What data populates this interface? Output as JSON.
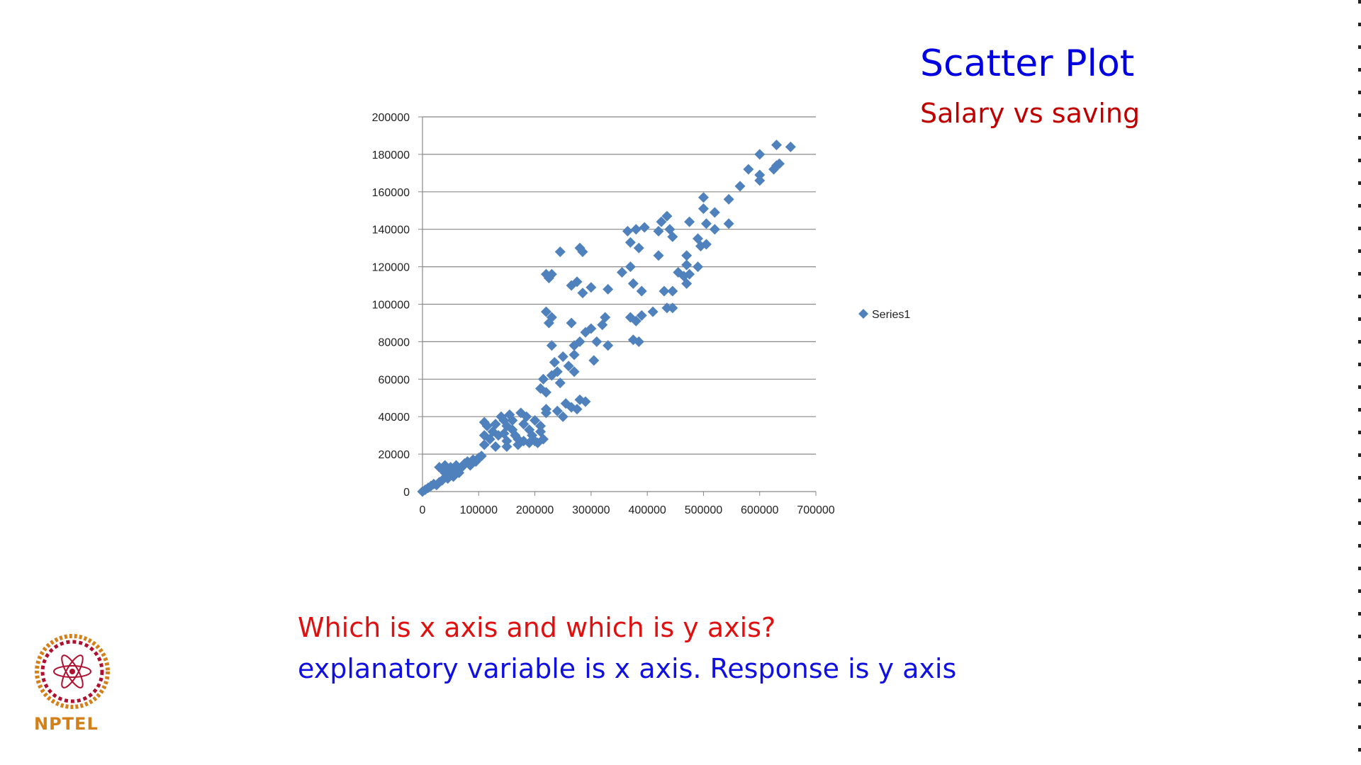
{
  "slide": {
    "title": "Scatter Plot",
    "subtitle": "Salary vs saving",
    "question": "Which is x axis and which is y axis?",
    "answer": "explanatory variable is x axis. Response is y axis",
    "logo_text": "NPTEL"
  },
  "colors": {
    "title": "#0000e0",
    "subtitle": "#c00000",
    "question": "#e01010",
    "answer": "#1010e0",
    "marker": "#4f81bd",
    "gridline": "#888888"
  },
  "chart_data": {
    "type": "scatter",
    "title": "",
    "xlabel": "",
    "ylabel": "",
    "xlim": [
      0,
      700000
    ],
    "ylim": [
      0,
      200000
    ],
    "x_ticks": [
      "0",
      "100000",
      "200000",
      "300000",
      "400000",
      "500000",
      "600000",
      "700000"
    ],
    "y_ticks": [
      "0",
      "20000",
      "40000",
      "60000",
      "80000",
      "100000",
      "120000",
      "140000",
      "160000",
      "180000",
      "200000"
    ],
    "grid": "horizontal",
    "legend_position": "right",
    "series": [
      {
        "name": "Series1",
        "marker": "diamond",
        "points": [
          [
            0,
            0
          ],
          [
            5000,
            1000
          ],
          [
            10000,
            2000
          ],
          [
            15000,
            3000
          ],
          [
            20000,
            4000
          ],
          [
            25000,
            3500
          ],
          [
            30000,
            5000
          ],
          [
            35000,
            6000
          ],
          [
            30000,
            13000
          ],
          [
            35000,
            12000
          ],
          [
            40000,
            10000
          ],
          [
            45000,
            11000
          ],
          [
            50000,
            9000
          ],
          [
            55000,
            12000
          ],
          [
            60000,
            11000
          ],
          [
            40000,
            14000
          ],
          [
            50000,
            13000
          ],
          [
            60000,
            14000
          ],
          [
            70000,
            13000
          ],
          [
            75000,
            15000
          ],
          [
            80000,
            16000
          ],
          [
            85000,
            14000
          ],
          [
            90000,
            17000
          ],
          [
            95000,
            16000
          ],
          [
            100000,
            18000
          ],
          [
            105000,
            19000
          ],
          [
            65000,
            10000
          ],
          [
            45000,
            7000
          ],
          [
            55000,
            8000
          ],
          [
            110000,
            25000
          ],
          [
            110000,
            30000
          ],
          [
            115000,
            35000
          ],
          [
            110000,
            37000
          ],
          [
            120000,
            28000
          ],
          [
            125000,
            32000
          ],
          [
            130000,
            36000
          ],
          [
            130000,
            24000
          ],
          [
            135000,
            30000
          ],
          [
            140000,
            40000
          ],
          [
            145000,
            38000
          ],
          [
            150000,
            35000
          ],
          [
            150000,
            27000
          ],
          [
            155000,
            41000
          ],
          [
            160000,
            33000
          ],
          [
            165000,
            30000
          ],
          [
            170000,
            28000
          ],
          [
            175000,
            42000
          ],
          [
            180000,
            36000
          ],
          [
            185000,
            40000
          ],
          [
            190000,
            33000
          ],
          [
            195000,
            30000
          ],
          [
            200000,
            38000
          ],
          [
            205000,
            26000
          ],
          [
            210000,
            32000
          ],
          [
            215000,
            28000
          ],
          [
            220000,
            44000
          ],
          [
            150000,
            24000
          ],
          [
            170000,
            25000
          ],
          [
            190000,
            26000
          ],
          [
            200000,
            27000
          ],
          [
            210000,
            35000
          ],
          [
            180000,
            27000
          ],
          [
            160000,
            38000
          ],
          [
            145000,
            31000
          ],
          [
            210000,
            55000
          ],
          [
            215000,
            60000
          ],
          [
            220000,
            53000
          ],
          [
            220000,
            42000
          ],
          [
            230000,
            62000
          ],
          [
            235000,
            69000
          ],
          [
            240000,
            64000
          ],
          [
            245000,
            58000
          ],
          [
            250000,
            72000
          ],
          [
            260000,
            67000
          ],
          [
            270000,
            64000
          ],
          [
            250000,
            40000
          ],
          [
            240000,
            43000
          ],
          [
            255000,
            47000
          ],
          [
            265000,
            45000
          ],
          [
            280000,
            49000
          ],
          [
            275000,
            44000
          ],
          [
            290000,
            48000
          ],
          [
            230000,
            78000
          ],
          [
            270000,
            78000
          ],
          [
            280000,
            80000
          ],
          [
            290000,
            85000
          ],
          [
            300000,
            87000
          ],
          [
            310000,
            80000
          ],
          [
            330000,
            78000
          ],
          [
            325000,
            93000
          ],
          [
            320000,
            89000
          ],
          [
            265000,
            90000
          ],
          [
            220000,
            96000
          ],
          [
            230000,
            93000
          ],
          [
            225000,
            90000
          ],
          [
            305000,
            70000
          ],
          [
            270000,
            73000
          ],
          [
            220000,
            116000
          ],
          [
            225000,
            114000
          ],
          [
            230000,
            116000
          ],
          [
            245000,
            128000
          ],
          [
            280000,
            130000
          ],
          [
            285000,
            128000
          ],
          [
            265000,
            110000
          ],
          [
            275000,
            112000
          ],
          [
            285000,
            106000
          ],
          [
            300000,
            109000
          ],
          [
            330000,
            108000
          ],
          [
            355000,
            117000
          ],
          [
            370000,
            120000
          ],
          [
            365000,
            139000
          ],
          [
            370000,
            133000
          ],
          [
            380000,
            140000
          ],
          [
            385000,
            130000
          ],
          [
            395000,
            141000
          ],
          [
            375000,
            111000
          ],
          [
            390000,
            107000
          ],
          [
            370000,
            93000
          ],
          [
            380000,
            91000
          ],
          [
            390000,
            94000
          ],
          [
            410000,
            96000
          ],
          [
            375000,
            81000
          ],
          [
            385000,
            80000
          ],
          [
            420000,
            139000
          ],
          [
            425000,
            144000
          ],
          [
            435000,
            147000
          ],
          [
            440000,
            140000
          ],
          [
            445000,
            136000
          ],
          [
            420000,
            126000
          ],
          [
            430000,
            107000
          ],
          [
            445000,
            107000
          ],
          [
            435000,
            98000
          ],
          [
            445000,
            98000
          ],
          [
            455000,
            117000
          ],
          [
            465000,
            115000
          ],
          [
            470000,
            121000
          ],
          [
            470000,
            126000
          ],
          [
            475000,
            116000
          ],
          [
            470000,
            111000
          ],
          [
            475000,
            144000
          ],
          [
            490000,
            135000
          ],
          [
            495000,
            131000
          ],
          [
            490000,
            120000
          ],
          [
            500000,
            157000
          ],
          [
            500000,
            151000
          ],
          [
            505000,
            143000
          ],
          [
            505000,
            132000
          ],
          [
            520000,
            149000
          ],
          [
            520000,
            140000
          ],
          [
            545000,
            156000
          ],
          [
            545000,
            143000
          ],
          [
            565000,
            163000
          ],
          [
            580000,
            172000
          ],
          [
            600000,
            180000
          ],
          [
            600000,
            166000
          ],
          [
            600000,
            169000
          ],
          [
            625000,
            172000
          ],
          [
            630000,
            174000
          ],
          [
            635000,
            175000
          ],
          [
            630000,
            185000
          ],
          [
            655000,
            184000
          ]
        ]
      }
    ]
  }
}
